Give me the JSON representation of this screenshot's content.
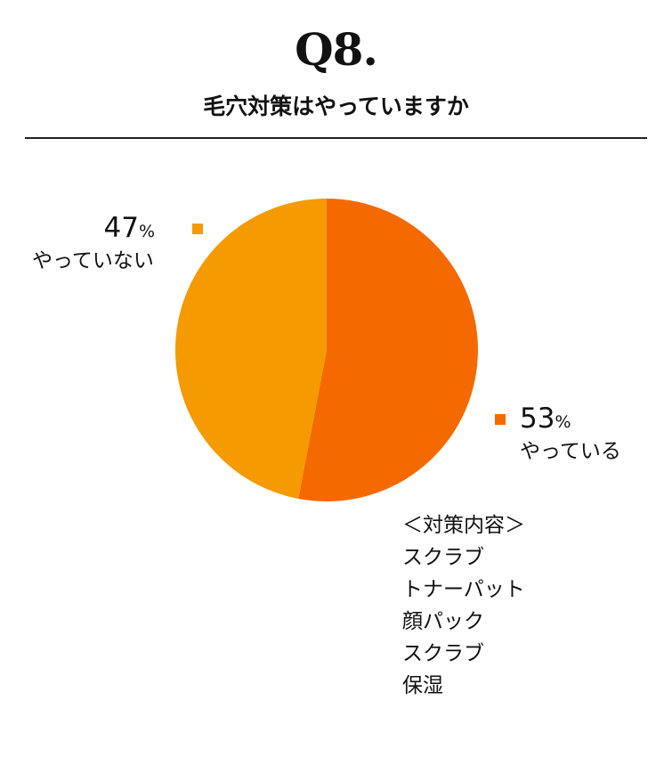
{
  "header": {
    "title": "Q8.",
    "subtitle": "毛穴対策はやっていますか"
  },
  "chart_data": {
    "type": "pie",
    "slices": [
      {
        "label": "やっている",
        "value": 53,
        "display": "53",
        "color": "#f56a00"
      },
      {
        "label": "やっていない",
        "value": 47,
        "display": "47",
        "color": "#f59a00"
      }
    ],
    "unit": "%"
  },
  "measures": {
    "heading": "＜対策内容＞",
    "items": [
      "スクラブ",
      "トナーパット",
      "顔パック",
      "スクラブ",
      "保湿"
    ]
  }
}
